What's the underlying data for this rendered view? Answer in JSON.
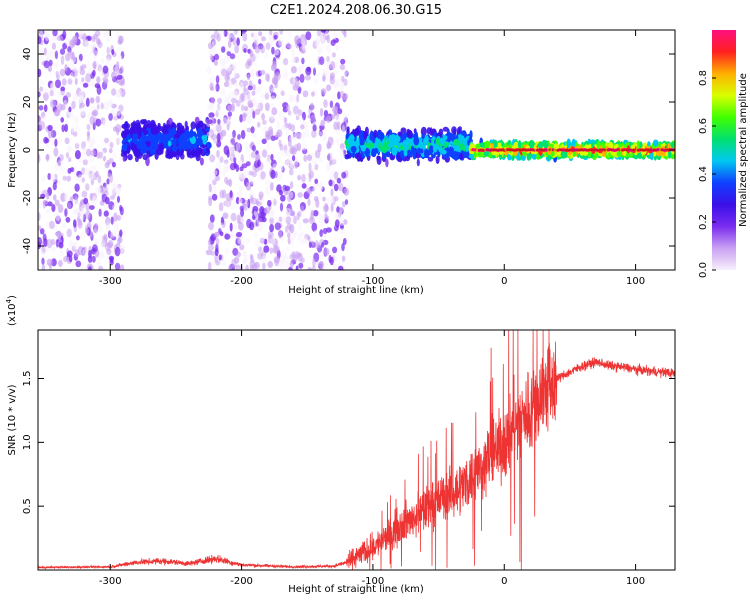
{
  "title": "C2E1.2024.208.06.30.G15",
  "chart_data": [
    {
      "type": "heatmap",
      "xlabel": "Height of straight line (km)",
      "ylabel": "Frequency (Hz)",
      "xlim": [
        -355,
        130
      ],
      "ylim": [
        -50,
        50
      ],
      "x_ticks": [
        -300,
        -200,
        -100,
        0,
        100
      ],
      "y_ticks": [
        -40,
        -20,
        0,
        20,
        40
      ],
      "x_tick_labels": [
        "-300",
        "-200",
        "-100",
        "0",
        "100"
      ],
      "y_tick_labels": [
        "-40",
        "-20",
        "0",
        "20",
        "40"
      ],
      "colorbar": {
        "label": "Normalized spectral amplitude",
        "range": [
          0,
          1
        ],
        "ticks": [
          0.0,
          0.2,
          0.4,
          0.6,
          0.8
        ],
        "tick_labels": [
          "0.0",
          "0.2",
          "0.4",
          "0.6",
          "0.8"
        ],
        "colormap": "rainbow",
        "stops": [
          "#f7f0fc",
          "#c9a0f2",
          "#7a2cf0",
          "#3a10e8",
          "#1040ff",
          "#00c8f0",
          "#00e070",
          "#40ff00",
          "#d8ff00",
          "#ffb000",
          "#ff2020",
          "#ff1080"
        ]
      },
      "bands": [
        {
          "x_range": [
            -355,
            -290
          ],
          "level": "low",
          "spread": "wide"
        },
        {
          "x_range": [
            -290,
            -225
          ],
          "level": "mid",
          "center_hz": 4,
          "halfwidth_hz": 8
        },
        {
          "x_range": [
            -225,
            -120
          ],
          "level": "low",
          "spread": "wide"
        },
        {
          "x_range": [
            -120,
            -25
          ],
          "level": "mid-high",
          "center_hz": 2,
          "halfwidth_hz": 6
        },
        {
          "x_range": [
            -25,
            130
          ],
          "level": "high",
          "center_hz": 0,
          "halfwidth_hz": 3
        }
      ],
      "grid": false
    },
    {
      "type": "line",
      "xlabel": "Height of straight line (km)",
      "ylabel": "SNR (10 * v/v)",
      "y_multiplier_label": "(x10",
      "y_multiplier_exp": "4",
      "xlim": [
        -355,
        130
      ],
      "ylim": [
        0,
        18800
      ],
      "x_ticks": [
        -300,
        -200,
        -100,
        0,
        100
      ],
      "x_tick_labels": [
        "-300",
        "-200",
        "-100",
        "0",
        "100"
      ],
      "y_ticks": [
        5000,
        10000,
        15000
      ],
      "y_tick_labels": [
        "0.5",
        "1.0",
        "1.5"
      ],
      "color": "#ee3333",
      "grid": false,
      "series": [
        {
          "x": [
            -355,
            -300,
            -280,
            -260,
            -240,
            -220,
            -200,
            -160,
            -130,
            -120,
            -110,
            -100,
            -90,
            -80,
            -70,
            -60,
            -50,
            -40,
            -30,
            -20,
            -10,
            -5,
            0,
            10,
            20,
            30,
            40,
            50,
            60,
            70,
            80,
            90,
            100,
            110,
            120,
            130
          ],
          "y": [
            200,
            250,
            600,
            700,
            500,
            900,
            400,
            250,
            300,
            600,
            1200,
            1800,
            2500,
            3500,
            4000,
            4800,
            5500,
            6000,
            6800,
            7800,
            9000,
            9500,
            10000,
            11500,
            12500,
            14000,
            15000,
            15500,
            16000,
            16300,
            16000,
            15900,
            15700,
            15600,
            15500,
            15400
          ]
        }
      ]
    }
  ]
}
